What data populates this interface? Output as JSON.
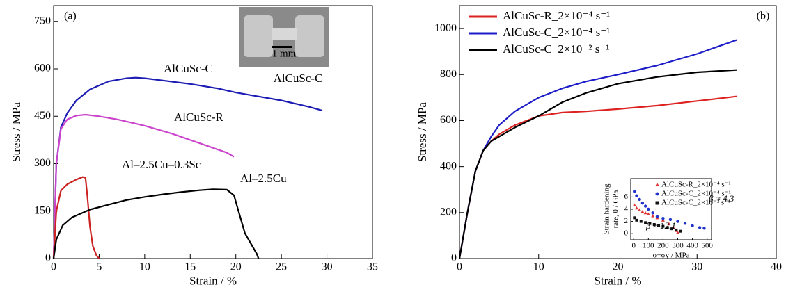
{
  "chart_data": [
    {
      "type": "line",
      "xlabel": "Strain / %",
      "ylabel": "Stress / MPa",
      "xlim": [
        0,
        35
      ],
      "ylim": [
        0,
        800
      ],
      "xticks": [
        0,
        5,
        10,
        15,
        20,
        25,
        30,
        35
      ],
      "yticks": [
        0,
        150,
        300,
        450,
        600,
        750
      ],
      "annotations": [
        "(a)",
        "1 mm",
        "AlCuSc-C"
      ],
      "series": [
        {
          "name": "AlCuSc-C",
          "color": "#1c1cb4",
          "x": [
            0,
            0.3,
            0.8,
            1.5,
            2.5,
            4,
            6,
            8,
            9,
            10,
            12,
            15,
            18,
            20,
            22,
            25,
            28,
            29.5
          ],
          "values": [
            0,
            300,
            415,
            460,
            500,
            535,
            560,
            570,
            572,
            570,
            563,
            552,
            538,
            525,
            515,
            500,
            480,
            468
          ]
        },
        {
          "name": "AlCuSc-R",
          "color": "#cc44cc",
          "x": [
            0,
            0.3,
            0.8,
            1.5,
            2.5,
            3.5,
            5,
            7,
            10,
            13,
            16,
            19,
            19.8
          ],
          "values": [
            0,
            300,
            410,
            440,
            452,
            455,
            450,
            440,
            420,
            395,
            365,
            335,
            322
          ]
        },
        {
          "name": "Al–2.5Cu–0.3Sc",
          "color": "#cc2222",
          "x": [
            0,
            0.3,
            0.8,
            1.5,
            2.5,
            3.2,
            3.5,
            3.7,
            4,
            4.3,
            4.7,
            5
          ],
          "values": [
            0,
            150,
            215,
            235,
            250,
            258,
            255,
            200,
            100,
            40,
            10,
            0
          ]
        },
        {
          "name": "Al–2.5Cu",
          "color": "#000000",
          "x": [
            0,
            0.3,
            1,
            2,
            4,
            6,
            8,
            10,
            12,
            14,
            16,
            17.5,
            19,
            19.8,
            20.3,
            21,
            21.8,
            22.3,
            22.5
          ],
          "values": [
            0,
            60,
            105,
            130,
            155,
            170,
            185,
            195,
            203,
            210,
            216,
            219,
            218,
            200,
            150,
            80,
            40,
            15,
            0
          ]
        }
      ]
    },
    {
      "type": "line",
      "xlabel": "Strain / %",
      "ylabel": "Stress / MPa",
      "xlim": [
        0,
        40
      ],
      "ylim": [
        0,
        1100
      ],
      "xticks": [
        0,
        10,
        20,
        30,
        40
      ],
      "yticks": [
        0,
        200,
        400,
        600,
        800,
        1000
      ],
      "annotations": [
        "(b)"
      ],
      "legend": "upper left",
      "series": [
        {
          "name": "AlCuSc-R_2×10⁻⁴ s⁻¹",
          "color": "#dd2222",
          "x": [
            0,
            1,
            2,
            3,
            4,
            5,
            7,
            10,
            13,
            16,
            20,
            25,
            30,
            35
          ],
          "values": [
            0,
            200,
            380,
            470,
            510,
            540,
            580,
            620,
            635,
            640,
            650,
            665,
            685,
            705
          ]
        },
        {
          "name": "AlCuSc-C_2×10⁻⁴ s⁻¹",
          "color": "#1c1cc8",
          "x": [
            0,
            1,
            2,
            3,
            4,
            5,
            7,
            10,
            13,
            16,
            20,
            25,
            30,
            35
          ],
          "values": [
            0,
            200,
            380,
            470,
            530,
            580,
            640,
            700,
            740,
            770,
            800,
            840,
            890,
            950
          ]
        },
        {
          "name": "AlCuSc-C_2×10⁻² s⁻¹",
          "color": "#000000",
          "x": [
            0,
            1,
            2,
            3,
            4,
            5,
            7,
            10,
            13,
            16,
            20,
            25,
            30,
            35
          ],
          "values": [
            0,
            200,
            380,
            470,
            510,
            530,
            570,
            620,
            680,
            720,
            760,
            790,
            810,
            820
          ]
        }
      ]
    },
    {
      "type": "scatter",
      "xlabel": "σ−σy / MPa",
      "ylabel": [
        "Strain hardening",
        "rate, θ / GPa"
      ],
      "xlim": [
        -20,
        530
      ],
      "ylim": [
        -1,
        9
      ],
      "xticks": [
        0,
        100,
        200,
        300,
        400,
        500
      ],
      "yticks": [
        0,
        2,
        4,
        6
      ],
      "annotations": [
        "β ≈ 4.3",
        "β ≈ 12.1"
      ],
      "legend": "upper right",
      "series": [
        {
          "name": "AlCuSc-R_2×10⁻⁴ s⁻¹",
          "color": "#dd3333",
          "x": [
            5,
            20,
            40,
            60,
            80,
            100,
            130,
            160,
            200,
            240,
            270,
            290,
            300
          ],
          "values": [
            4.7,
            4.2,
            3.9,
            3.6,
            3.4,
            3.2,
            2.9,
            2.6,
            2.2,
            1.6,
            1.0,
            0.5,
            0.2
          ]
        },
        {
          "name": "AlCuSc-C_2×10⁻⁴ s⁻¹",
          "color": "#2233cc",
          "x": [
            5,
            20,
            40,
            60,
            80,
            100,
            130,
            160,
            200,
            250,
            300,
            350,
            400,
            450,
            480
          ],
          "values": [
            6.9,
            6.2,
            5.6,
            5.0,
            4.5,
            4.0,
            3.4,
            2.8,
            2.5,
            2.3,
            2.0,
            1.7,
            1.3,
            1.0,
            0.9
          ]
        },
        {
          "name": "AlCuSc-C_2×10⁻² s⁻¹",
          "color": "#111111",
          "x": [
            5,
            20,
            50,
            80,
            110,
            140,
            170,
            200,
            230,
            260,
            290,
            320
          ],
          "values": [
            2.6,
            2.2,
            2.0,
            1.8,
            1.65,
            1.5,
            1.35,
            1.2,
            1.0,
            0.8,
            0.6,
            0.4
          ]
        }
      ]
    }
  ]
}
